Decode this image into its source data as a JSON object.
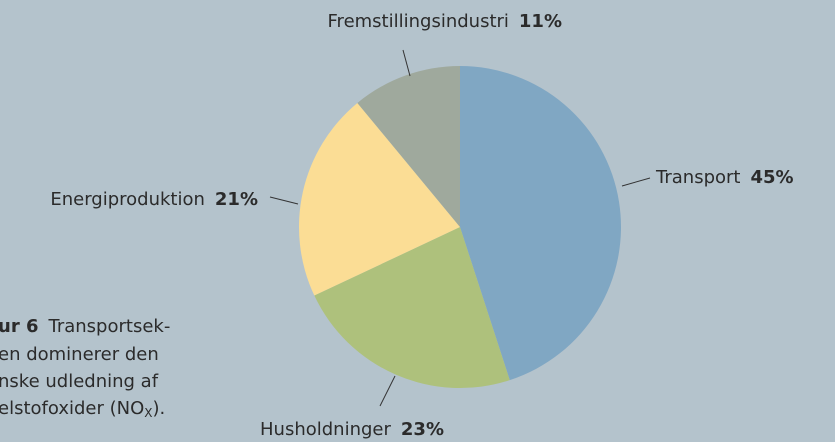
{
  "chart_data": {
    "type": "pie",
    "categories": [
      "Transport",
      "Husholdninger",
      "Energiproduktion",
      "Fremstillingsindustri"
    ],
    "values": [
      45,
      23,
      21,
      11
    ],
    "value_labels": [
      "45%",
      "23%",
      "21%",
      "11%"
    ],
    "colors": [
      "#80a7c3",
      "#aec17c",
      "#fbdd95",
      "#9fa99d"
    ],
    "caption": {
      "label": "ur 6",
      "lines": [
        "Transportsek-",
        "en dominerer den",
        "nske udledning af",
        "elstofoxider (NO"
      ],
      "subscript": "X",
      "suffix": ")."
    }
  }
}
